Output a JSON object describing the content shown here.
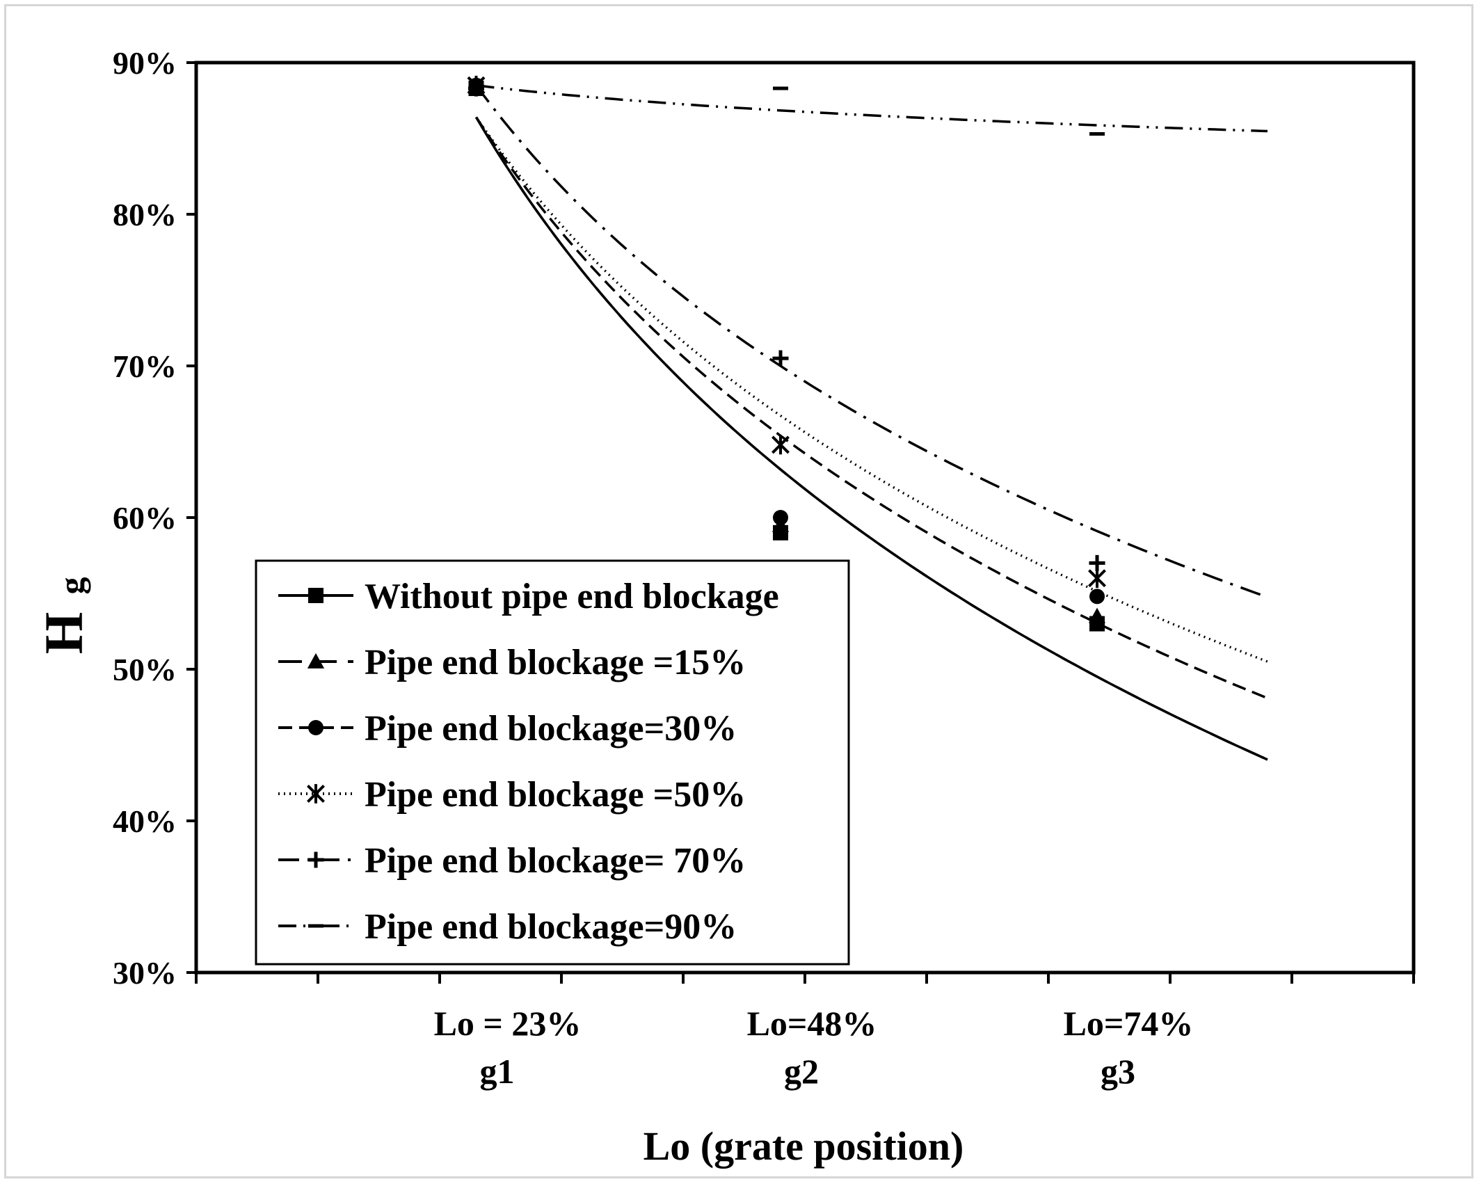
{
  "chart_data": {
    "type": "scatter",
    "xlabel": "Lo (grate position)",
    "ylabel": {
      "main": "H",
      "sub": "g"
    },
    "ylim": [
      0.3,
      0.9
    ],
    "yticks": [
      0.3,
      0.4,
      0.5,
      0.6,
      0.7,
      0.8,
      0.9
    ],
    "ytick_labels": [
      "30%",
      "40%",
      "50%",
      "60%",
      "70%",
      "80%",
      "90%"
    ],
    "xlim": [
      0,
      10
    ],
    "x_minor_ticks": [
      0,
      1,
      2,
      3,
      4,
      5,
      6,
      7,
      8,
      9,
      10
    ],
    "x_categories": [
      {
        "x": 2.3,
        "line1": "Lo = 23%",
        "line2": "g1"
      },
      {
        "x": 4.8,
        "line1": "Lo=48%",
        "line2": "g2"
      },
      {
        "x": 7.4,
        "line1": "Lo=74%",
        "line2": "g3"
      }
    ],
    "trendline_x_range": [
      2.3,
      8.8
    ],
    "grid": false,
    "legend_position": "bottom-left",
    "series": [
      {
        "name": "Without pipe end blockage",
        "marker": "square",
        "dash": "solid",
        "points": [
          [
            2.3,
            0.883
          ],
          [
            4.8,
            0.59
          ],
          [
            7.4,
            0.53
          ]
        ],
        "trend": {
          "a": 0.864,
          "b": -0.3157
        }
      },
      {
        "name": "Pipe end blockage =15%",
        "marker": "triangle",
        "dash": "long-dash",
        "points": [
          [
            2.3,
            0.885
          ],
          [
            4.8,
            0.595
          ],
          [
            7.4,
            0.535
          ]
        ],
        "trend": {
          "a": 0.864,
          "b": -0.3157
        }
      },
      {
        "name": "Pipe end blockage=30%",
        "marker": "circle",
        "dash": "medium-dash",
        "points": [
          [
            2.3,
            0.885
          ],
          [
            4.8,
            0.6
          ],
          [
            7.4,
            0.548
          ]
        ],
        "trend": {
          "a": 0.864,
          "b": -0.2855
        }
      },
      {
        "name": "Pipe end blockage =50%",
        "marker": "star",
        "dash": "dotted",
        "points": [
          [
            2.3,
            0.885
          ],
          [
            4.8,
            0.648
          ],
          [
            7.4,
            0.56
          ]
        ],
        "trend": {
          "a": 0.864,
          "b": -0.2675
        }
      },
      {
        "name": "Pipe end blockage= 70%",
        "marker": "plus",
        "dash": "dash-dot",
        "points": [
          [
            2.3,
            0.883
          ],
          [
            4.8,
            0.705
          ],
          [
            7.4,
            0.57
          ]
        ],
        "trend": {
          "a": 0.885,
          "b": -0.2515
        }
      },
      {
        "name": "Pipe end blockage=90%",
        "marker": "dash",
        "dash": "dash-dot-dot",
        "points": [
          [
            2.3,
            0.883
          ],
          [
            4.8,
            0.883
          ],
          [
            7.4,
            0.853
          ]
        ],
        "trend": {
          "a": 0.885,
          "b": -0.0225
        }
      }
    ]
  }
}
